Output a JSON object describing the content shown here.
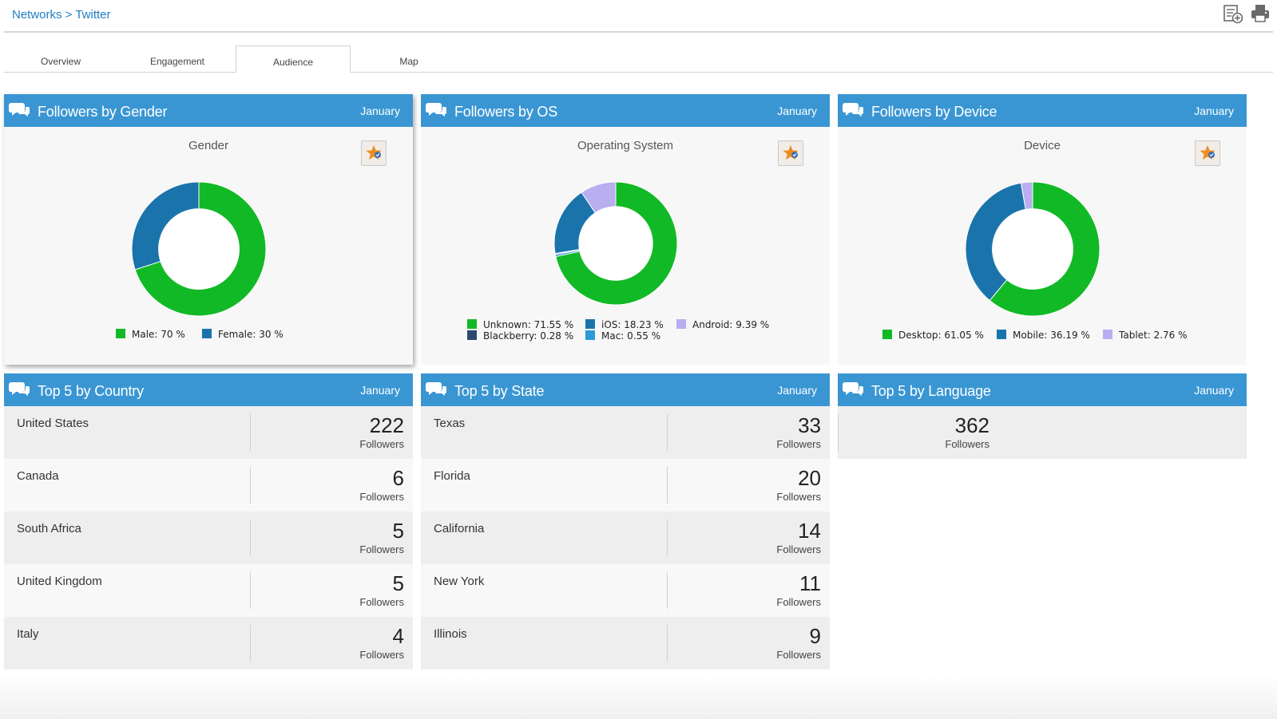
{
  "breadcrumb": {
    "parent": "Networks",
    "sep": " > ",
    "current": "Twitter"
  },
  "tabs": [
    {
      "label": "Overview",
      "active": false
    },
    {
      "label": "Engagement",
      "active": false
    },
    {
      "label": "Audience",
      "active": true
    },
    {
      "label": "Map",
      "active": false
    }
  ],
  "colors": {
    "header": "#3a96d3",
    "green": "#12b926",
    "blue": "#1a74ab",
    "lavender": "#b8aef0",
    "navy": "#2d4a6e",
    "lightblue": "#2a9ad8"
  },
  "panels": {
    "gender": {
      "title": "Followers by Gender",
      "month": "January"
    },
    "os": {
      "title": "Followers by OS",
      "month": "January"
    },
    "device": {
      "title": "Followers by Device",
      "month": "January"
    },
    "country": {
      "title": "Top 5 by Country",
      "month": "January"
    },
    "state": {
      "title": "Top 5 by State",
      "month": "January"
    },
    "language": {
      "title": "Top 5 by Language",
      "month": "January"
    }
  },
  "chart_data": [
    {
      "type": "pie",
      "title": "Gender",
      "slices": [
        {
          "label": "Male",
          "value": 70,
          "color": "#12b926",
          "legend": "Male: 70 %"
        },
        {
          "label": "Female",
          "value": 30,
          "color": "#1a74ab",
          "legend": "Female: 30 %"
        }
      ]
    },
    {
      "type": "pie",
      "title": "Operating System",
      "slices": [
        {
          "label": "Unknown",
          "value": 71.55,
          "color": "#12b926",
          "legend": "Unknown: 71.55 %"
        },
        {
          "label": "iOS",
          "value": 18.23,
          "color": "#1a74ab",
          "legend": "iOS: 18.23 %"
        },
        {
          "label": "Android",
          "value": 9.39,
          "color": "#b8aef0",
          "legend": "Android: 9.39 %"
        },
        {
          "label": "Blackberry",
          "value": 0.28,
          "color": "#2d4a6e",
          "legend": "Blackberry: 0.28 %"
        },
        {
          "label": "Mac",
          "value": 0.55,
          "color": "#2a9ad8",
          "legend": "Mac: 0.55 %"
        }
      ]
    },
    {
      "type": "pie",
      "title": "Device",
      "slices": [
        {
          "label": "Desktop",
          "value": 61.05,
          "color": "#12b926",
          "legend": "Desktop: 61.05 %"
        },
        {
          "label": "Mobile",
          "value": 36.19,
          "color": "#1a74ab",
          "legend": "Mobile: 36.19 %"
        },
        {
          "label": "Tablet",
          "value": 2.76,
          "color": "#b8aef0",
          "legend": "Tablet: 2.76 %"
        }
      ]
    }
  ],
  "countries": [
    {
      "name": "United States",
      "count": "222",
      "unit": "Followers"
    },
    {
      "name": "Canada",
      "count": "6",
      "unit": "Followers"
    },
    {
      "name": "South Africa",
      "count": "5",
      "unit": "Followers"
    },
    {
      "name": "United Kingdom",
      "count": "5",
      "unit": "Followers"
    },
    {
      "name": "Italy",
      "count": "4",
      "unit": "Followers"
    }
  ],
  "states": [
    {
      "name": "Texas",
      "count": "33",
      "unit": "Followers"
    },
    {
      "name": "Florida",
      "count": "20",
      "unit": "Followers"
    },
    {
      "name": "California",
      "count": "14",
      "unit": "Followers"
    },
    {
      "name": "New York",
      "count": "11",
      "unit": "Followers"
    },
    {
      "name": "Illinois",
      "count": "9",
      "unit": "Followers"
    }
  ],
  "languages": [
    {
      "name": "",
      "count": "362",
      "unit": "Followers"
    }
  ]
}
